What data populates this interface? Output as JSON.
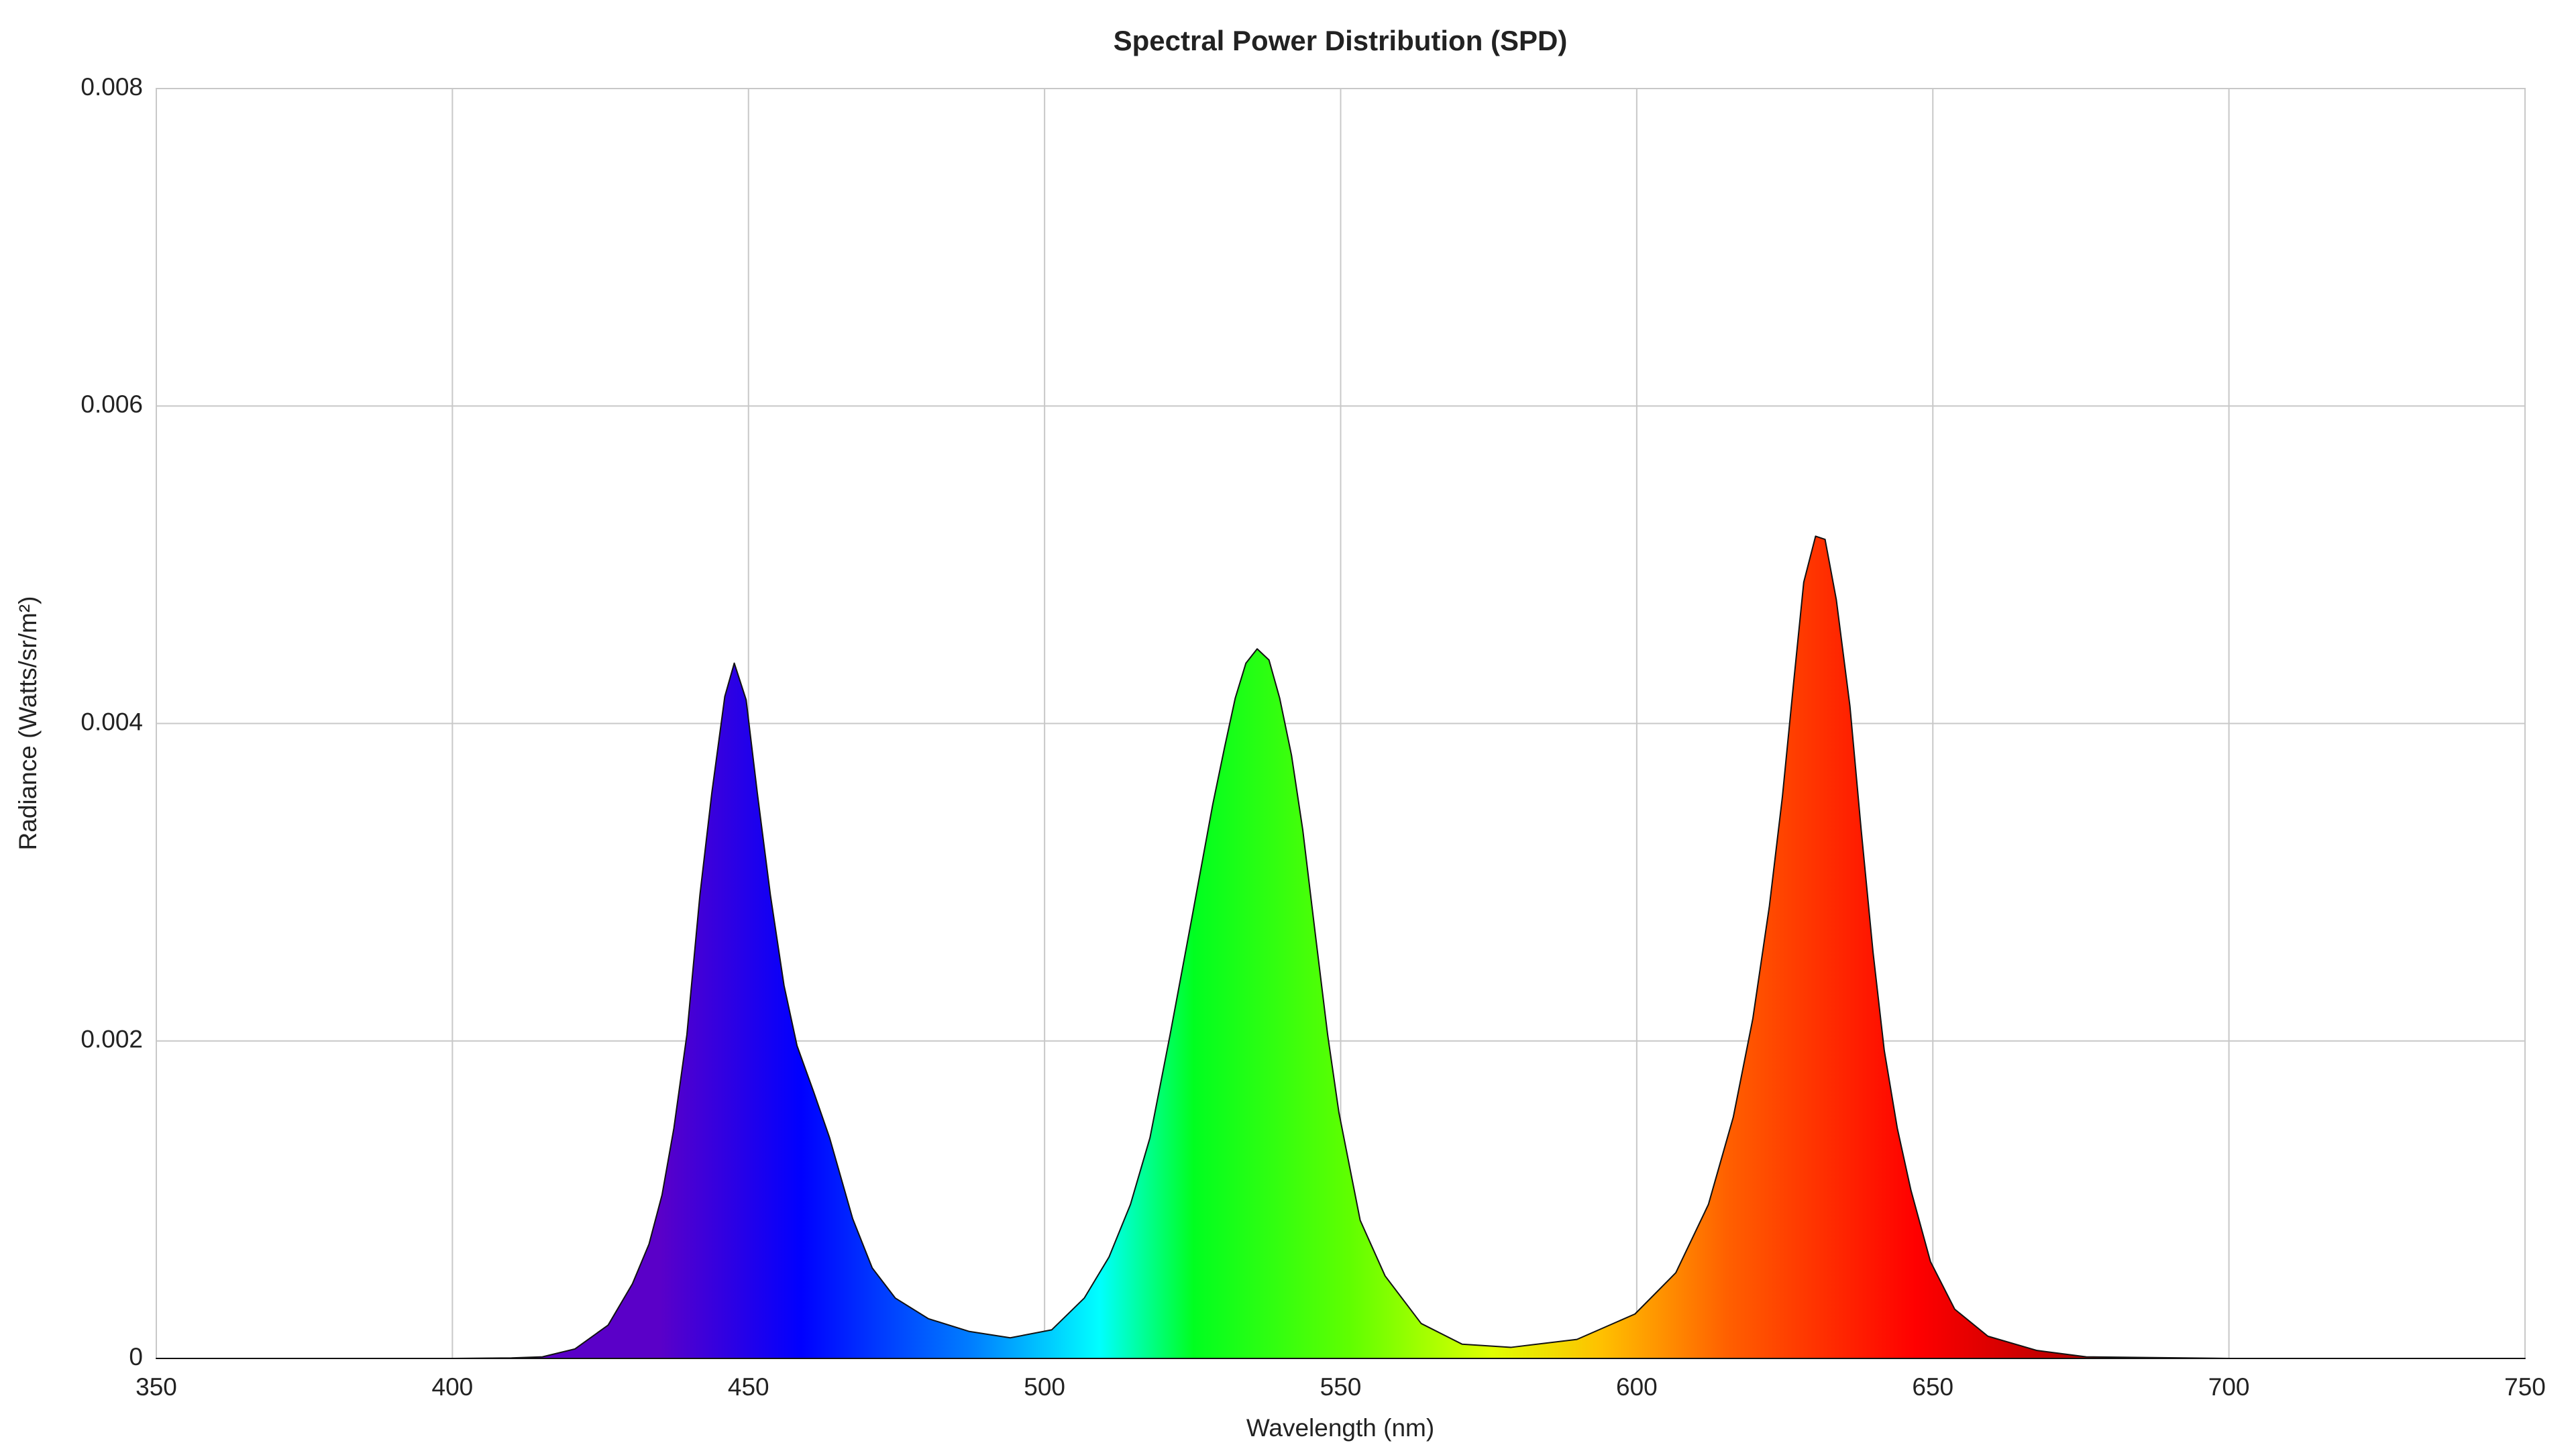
{
  "chart_data": {
    "type": "area",
    "title": "Spectral Power Distribution (SPD)",
    "x_label": "Wavelength (nm)",
    "y_label": "Radiance (Watts/sr/m²)",
    "x": [
      350,
      400,
      410,
      415.2,
      420.7,
      426.3,
      430.4,
      433.2,
      435.4,
      437.4,
      439.6,
      441.8,
      443.8,
      446,
      447.6,
      449.6,
      451.5,
      453.7,
      456,
      458.2,
      461,
      463.7,
      467.6,
      470.9,
      474.8,
      480.4,
      487.3,
      494.2,
      501.2,
      506.7,
      510.9,
      514.5,
      517.8,
      521.2,
      524.8,
      528.4,
      530.4,
      532.2,
      534,
      535.9,
      537.9,
      539.7,
      541.7,
      543.6,
      545.6,
      547.8,
      549.7,
      553.3,
      557.5,
      563.6,
      570.5,
      578.8,
      589.9,
      599.7,
      606.6,
      612.1,
      616.3,
      619.6,
      622.4,
      624.6,
      626.5,
      628.2,
      630.2,
      631.8,
      633.7,
      636,
      637.9,
      639.9,
      641.8,
      644,
      646.3,
      649.6,
      653.7,
      659.3,
      667.6,
      675.9,
      700,
      750
    ],
    "values": [
      0,
      0,
      3e-06,
      1e-05,
      6e-05,
      0.00021,
      0.00047,
      0.00072,
      0.00103,
      0.00145,
      0.00204,
      0.00292,
      0.00356,
      0.00417,
      0.00438,
      0.00415,
      0.00356,
      0.00292,
      0.00235,
      0.00197,
      0.00168,
      0.00139,
      0.00088,
      0.00057,
      0.00038,
      0.00025,
      0.00017,
      0.00013,
      0.00018,
      0.00038,
      0.00064,
      0.00097,
      0.00139,
      0.00204,
      0.00276,
      0.00349,
      0.00385,
      0.00416,
      0.00438,
      0.00447,
      0.0044,
      0.00416,
      0.0038,
      0.00333,
      0.00271,
      0.00204,
      0.00155,
      0.00087,
      0.00052,
      0.00022,
      9e-05,
      7e-05,
      0.00012,
      0.00028,
      0.00054,
      0.00097,
      0.00152,
      0.00214,
      0.00285,
      0.00354,
      0.00426,
      0.00489,
      0.00518,
      0.00516,
      0.00478,
      0.00411,
      0.00333,
      0.00256,
      0.00194,
      0.00145,
      0.00106,
      0.00061,
      0.00031,
      0.00014,
      5e-05,
      1e-05,
      0,
      0
    ],
    "xlim": [
      350,
      750
    ],
    "xticks": [
      350,
      400,
      450,
      500,
      550,
      600,
      650,
      700,
      750
    ],
    "ylim": [
      0,
      0.008
    ],
    "yticks": [
      0,
      0.002,
      0.004,
      0.006,
      0.008
    ],
    "grid": true
  }
}
